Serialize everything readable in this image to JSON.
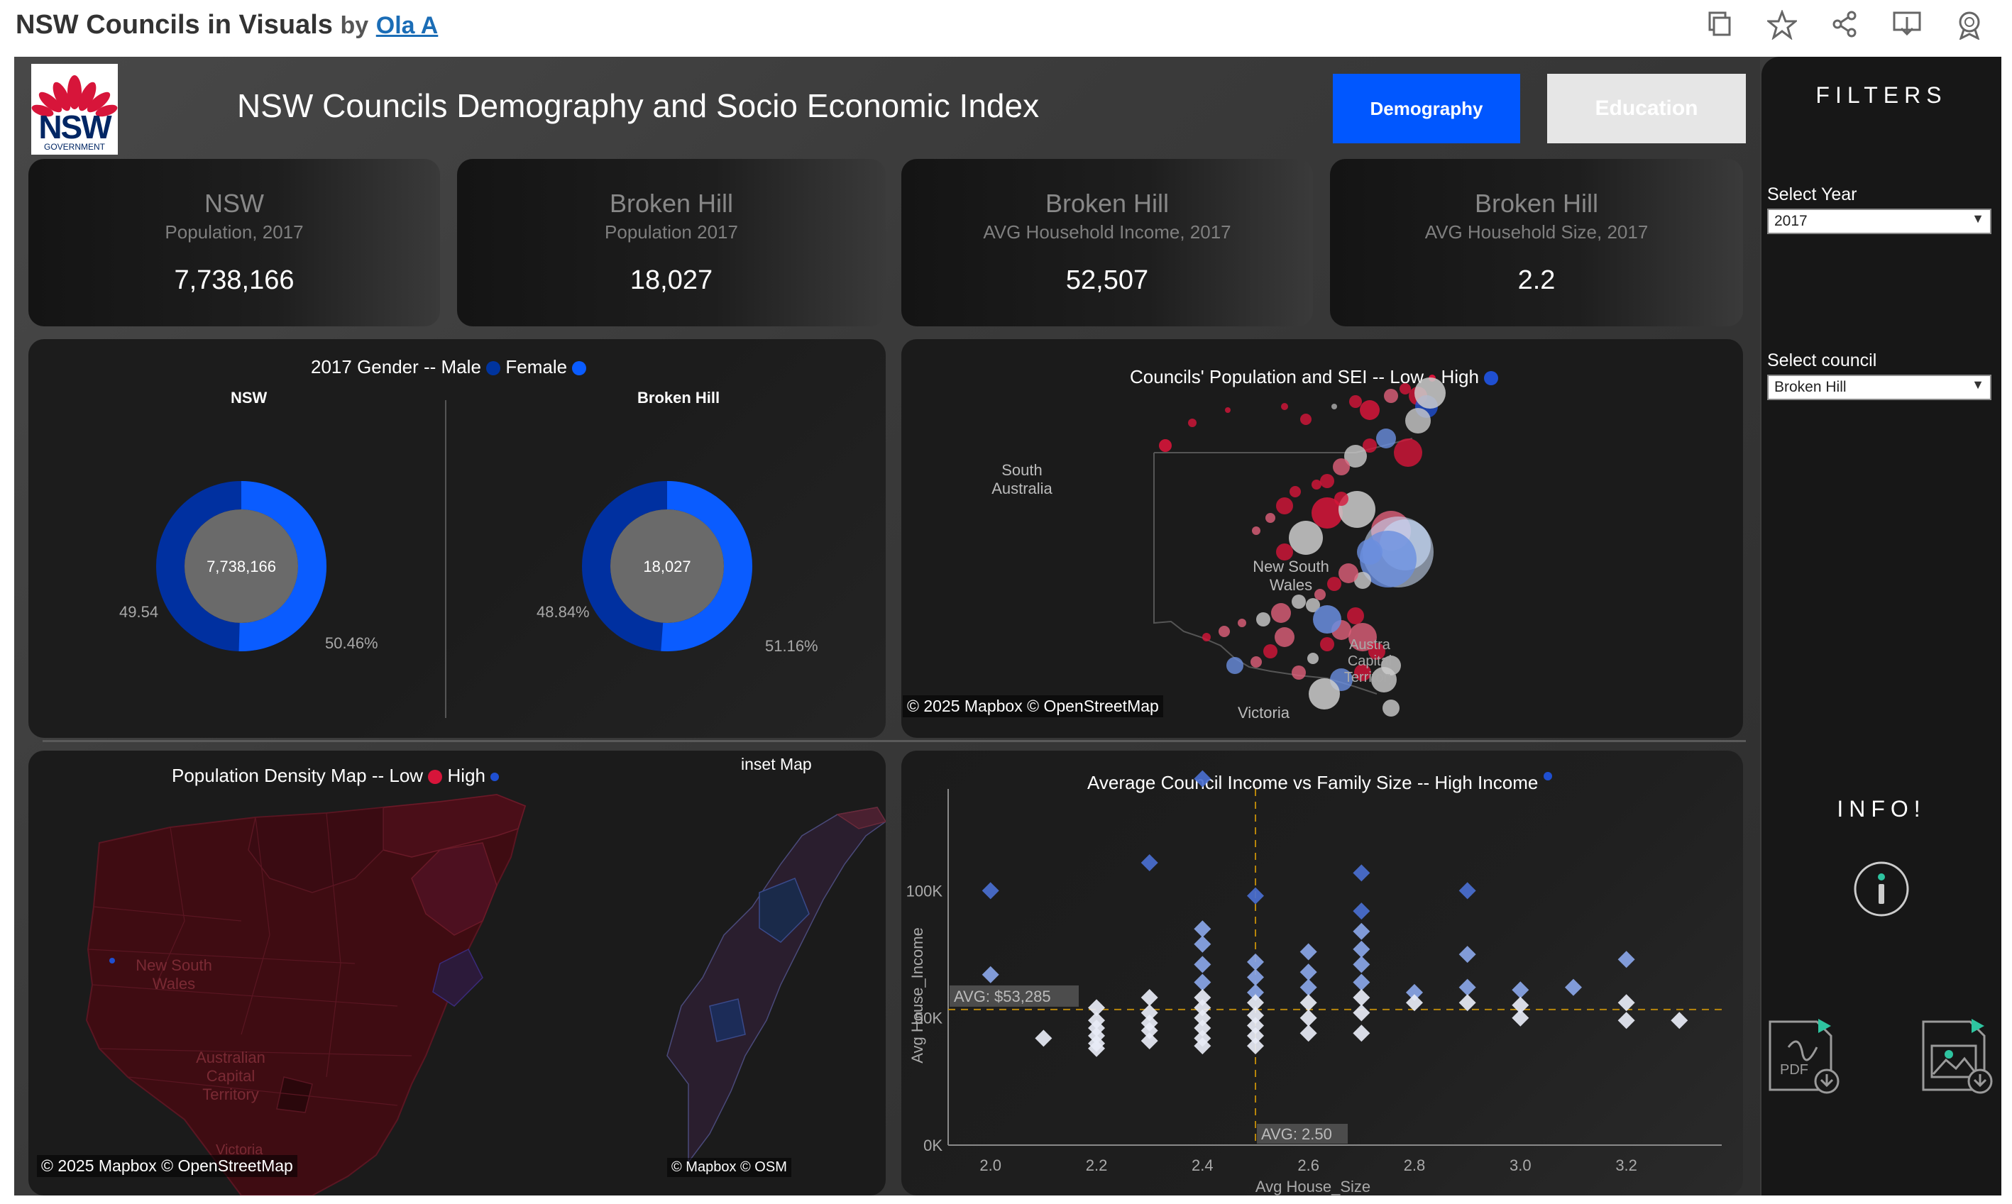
{
  "header": {
    "title": "NSW Councils in Visuals",
    "by": "by",
    "author": "Ola A",
    "icons": [
      "copy-icon",
      "star-icon",
      "share-icon",
      "download-icon",
      "badge-icon"
    ]
  },
  "dashboard": {
    "logo": {
      "text": "NSW",
      "sub": "GOVERNMENT"
    },
    "title": "NSW Councils Demography and Socio Economic Index",
    "tabs": [
      {
        "label": "Demography",
        "active": true,
        "color": "#0057ff"
      },
      {
        "label": "Education",
        "active": false,
        "color": "#e6e6e6"
      }
    ],
    "kpis": [
      {
        "title": "NSW",
        "subtitle": "Population, 2017",
        "value": "7,738,166"
      },
      {
        "title": "Broken Hill",
        "subtitle": "Population 2017",
        "value": "18,027"
      },
      {
        "title": "Broken Hill",
        "subtitle": "AVG Household Income, 2017",
        "value": "52,507"
      },
      {
        "title": "Broken Hill",
        "subtitle": "AVG Household Size, 2017",
        "value": "2.2"
      }
    ],
    "gender": {
      "title": "2017 Gender -- Male",
      "female": "Female",
      "male_color": "#00349e",
      "female_color": "#0a5cff",
      "donuts": [
        {
          "name": "NSW",
          "center": "7,738,166",
          "male_label": "49.54",
          "female_label": "50.46%",
          "male_pct": 49.54,
          "female_pct": 50.46
        },
        {
          "name": "Broken Hill",
          "center": "18,027",
          "male_label": "48.84%",
          "female_label": "51.16%",
          "male_pct": 48.84,
          "female_pct": 51.16
        }
      ]
    },
    "sei_map": {
      "title": "Councils'  Population and SEI -- Low",
      "high": "High",
      "labels": [
        "South",
        "Australia",
        "New South",
        "Wales",
        "Austra",
        "Capital",
        "Territory",
        "Victoria"
      ],
      "credit": "© 2025 Mapbox  © OpenStreetMap"
    },
    "density_map": {
      "title": "Population Density Map -- Low",
      "high": "High",
      "labels": [
        "New South",
        "Wales",
        "Australian",
        "Capital",
        "Territory",
        "Victoria"
      ],
      "credit": "© 2025 Mapbox  © OpenStreetMap",
      "inset_title": "inset Map",
      "inset_credit": "© Mapbox  © OSM"
    },
    "filters": {
      "title": "FILTERS",
      "year_label": "Select Year",
      "year_value": "2017",
      "council_label": "Select council",
      "council_value": "Broken Hill",
      "info": "INFO!",
      "icons": [
        "info-icon",
        "pdf-download-icon",
        "image-download-icon"
      ]
    }
  },
  "chart_data": {
    "type": "scatter",
    "title": "Average Council Income vs Family Size -- High Income",
    "xlabel": "Avg House_Size",
    "ylabel": "Avg House_Income",
    "xlim": [
      1.92,
      3.38
    ],
    "ylim": [
      0,
      140000
    ],
    "xticks": [
      "2.0",
      "2.2",
      "2.4",
      "2.6",
      "2.8",
      "3.0",
      "3.2"
    ],
    "yticks": [
      "0K",
      "50K",
      "100K"
    ],
    "avg_lines": {
      "x": 2.5,
      "x_label": "AVG: 2.50",
      "y": 53285,
      "y_label": "AVG: $53,285"
    },
    "points": [
      [
        2.0,
        100000
      ],
      [
        2.0,
        67000
      ],
      [
        2.2,
        54000
      ],
      [
        2.2,
        49000
      ],
      [
        2.2,
        46000
      ],
      [
        2.2,
        43000
      ],
      [
        2.2,
        40000
      ],
      [
        2.2,
        38000
      ],
      [
        2.1,
        42000
      ],
      [
        2.3,
        111000
      ],
      [
        2.3,
        58000
      ],
      [
        2.3,
        52000
      ],
      [
        2.3,
        48000
      ],
      [
        2.3,
        45000
      ],
      [
        2.3,
        41000
      ],
      [
        2.4,
        144000
      ],
      [
        2.4,
        85000
      ],
      [
        2.4,
        79000
      ],
      [
        2.4,
        71000
      ],
      [
        2.4,
        64000
      ],
      [
        2.4,
        58000
      ],
      [
        2.4,
        54000
      ],
      [
        2.4,
        50000
      ],
      [
        2.4,
        46000
      ],
      [
        2.4,
        42000
      ],
      [
        2.4,
        39000
      ],
      [
        2.5,
        98000
      ],
      [
        2.5,
        72000
      ],
      [
        2.5,
        66000
      ],
      [
        2.5,
        60000
      ],
      [
        2.5,
        56000
      ],
      [
        2.5,
        51000
      ],
      [
        2.5,
        47000
      ],
      [
        2.5,
        43000
      ],
      [
        2.5,
        39000
      ],
      [
        2.6,
        76000
      ],
      [
        2.6,
        68000
      ],
      [
        2.6,
        62000
      ],
      [
        2.6,
        56000
      ],
      [
        2.6,
        50000
      ],
      [
        2.6,
        44000
      ],
      [
        2.7,
        107000
      ],
      [
        2.7,
        92000
      ],
      [
        2.7,
        84000
      ],
      [
        2.7,
        77000
      ],
      [
        2.7,
        71000
      ],
      [
        2.7,
        64000
      ],
      [
        2.7,
        58000
      ],
      [
        2.7,
        52000
      ],
      [
        2.7,
        44000
      ],
      [
        2.8,
        60000
      ],
      [
        2.8,
        56000
      ],
      [
        2.9,
        100000
      ],
      [
        2.9,
        75000
      ],
      [
        2.9,
        62000
      ],
      [
        2.9,
        56000
      ],
      [
        3.0,
        61000
      ],
      [
        3.0,
        55000
      ],
      [
        3.0,
        50000
      ],
      [
        3.1,
        62000
      ],
      [
        3.2,
        73000
      ],
      [
        3.2,
        56000
      ],
      [
        3.2,
        49000
      ],
      [
        3.3,
        49000
      ]
    ]
  }
}
